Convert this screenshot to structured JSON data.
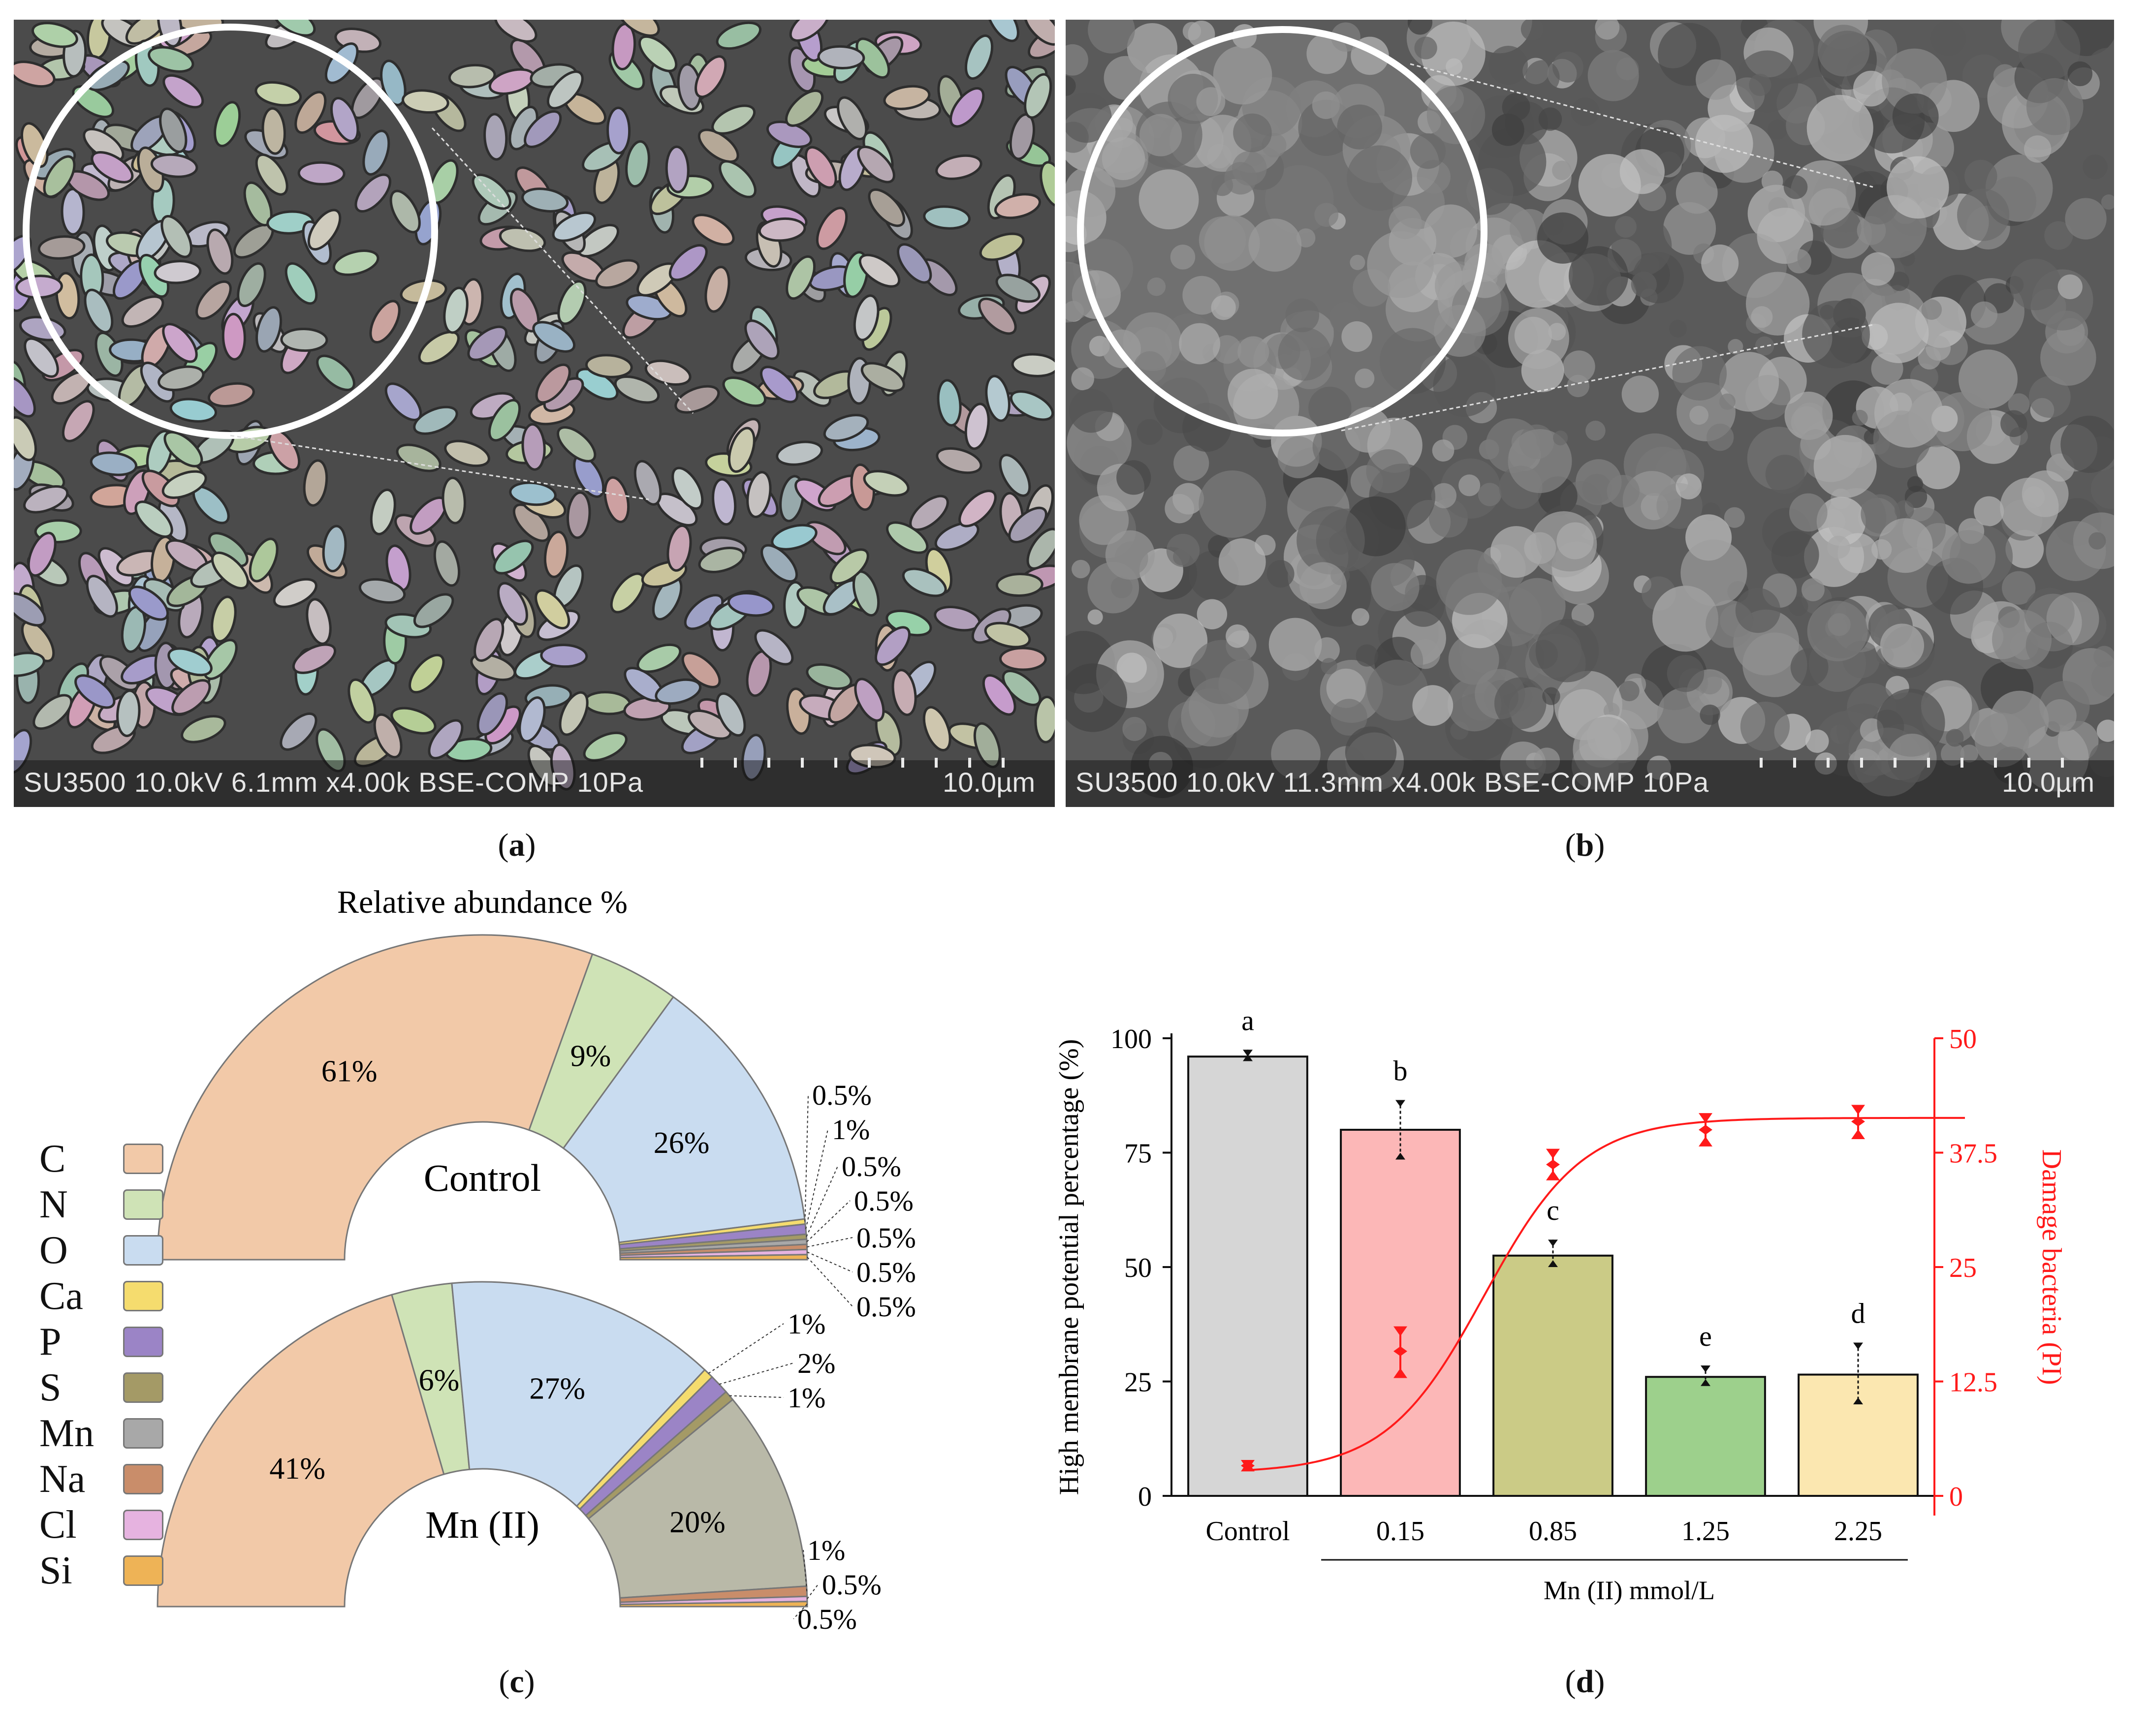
{
  "panel_a": {
    "info_text": "SU3500 10.0kV 6.1mm x4.00k BSE-COMP 10Pa",
    "scale_text": "10.0µm",
    "caption_letter": "a"
  },
  "panel_b": {
    "info_text": "SU3500 10.0kV 11.3mm x4.00k BSE-COMP 10Pa",
    "scale_text": "10.0µm",
    "caption_letter": "b"
  },
  "panel_c": {
    "caption_letter": "c",
    "title": "Relative abundance %",
    "legend": [
      {
        "label": "C",
        "color": "#f2c9a8"
      },
      {
        "label": "N",
        "color": "#cfe3b6"
      },
      {
        "label": "O",
        "color": "#c9dcf0"
      },
      {
        "label": "Ca",
        "color": "#f5dc6e"
      },
      {
        "label": "P",
        "color": "#9b84c6"
      },
      {
        "label": "S",
        "color": "#a49a66"
      },
      {
        "label": "Mn",
        "color": "#a8a8a8"
      },
      {
        "label": "Na",
        "color": "#c98d6a"
      },
      {
        "label": "Cl",
        "color": "#e6b3e0"
      },
      {
        "label": "Si",
        "color": "#eeb356"
      }
    ]
  },
  "panel_d": {
    "caption_letter": "d"
  },
  "chart_data": [
    {
      "type": "pie",
      "subtype": "half-donut",
      "title": "Relative abundance %",
      "center_label": "Control",
      "slices": [
        {
          "element": "C",
          "percent": 61,
          "label": "61%",
          "color": "#f2c9a8"
        },
        {
          "element": "N",
          "percent": 9,
          "label": "9%",
          "color": "#cfe3b6"
        },
        {
          "element": "O",
          "percent": 26,
          "label": "26%",
          "color": "#c9dcf0"
        },
        {
          "element": "Ca",
          "percent": 0.5,
          "label": "0.5%",
          "color": "#f5dc6e"
        },
        {
          "element": "P",
          "percent": 1,
          "label": "1%",
          "color": "#9b84c6"
        },
        {
          "element": "S",
          "percent": 0.5,
          "label": "0.5%",
          "color": "#a49a66"
        },
        {
          "element": "Mn",
          "percent": 0.5,
          "label": "0.5%",
          "color": "#a8a8a8"
        },
        {
          "element": "Na",
          "percent": 0.5,
          "label": "0.5%",
          "color": "#c98d6a"
        },
        {
          "element": "Cl",
          "percent": 0.5,
          "label": "0.5%",
          "color": "#e6b3e0"
        },
        {
          "element": "Si",
          "percent": 0.5,
          "label": "0.5%",
          "color": "#eeb356"
        }
      ]
    },
    {
      "type": "pie",
      "subtype": "half-donut",
      "center_label": "Mn (II)",
      "slices": [
        {
          "element": "C",
          "percent": 41,
          "label": "41%",
          "color": "#f2c9a8"
        },
        {
          "element": "N",
          "percent": 6,
          "label": "6%",
          "color": "#cfe3b6"
        },
        {
          "element": "O",
          "percent": 27,
          "label": "27%",
          "color": "#c9dcf0"
        },
        {
          "element": "Ca",
          "percent": 1,
          "label": "1%",
          "color": "#f5dc6e"
        },
        {
          "element": "P",
          "percent": 2,
          "label": "2%",
          "color": "#9b84c6"
        },
        {
          "element": "S",
          "percent": 1,
          "label": "1%",
          "color": "#a49a66"
        },
        {
          "element": "Mn",
          "percent": 20,
          "label": "20%",
          "color": "#b9b9a8"
        },
        {
          "element": "Na",
          "percent": 1,
          "label": "1%",
          "color": "#c98d6a"
        },
        {
          "element": "Cl",
          "percent": 0.5,
          "label": "0.5%",
          "color": "#e6b3e0"
        },
        {
          "element": "Si",
          "percent": 0.5,
          "label": "0.5%",
          "color": "#eeb356"
        }
      ]
    },
    {
      "type": "bar",
      "categories": [
        "Control",
        "0.15",
        "0.85",
        "1.25",
        "2.25"
      ],
      "xlabel": "Mn (II) mmol/L",
      "ylabel": "High membrane potential percentage (%)",
      "ylim": [
        0,
        100
      ],
      "yticks": [
        0,
        25,
        50,
        75,
        100
      ],
      "bars": {
        "values": [
          96,
          80,
          52.5,
          26,
          26.5
        ],
        "error_low": [
          95,
          73.5,
          50,
          24,
          20
        ],
        "error_high": [
          97.5,
          86.5,
          56,
          28.5,
          33.5
        ],
        "letters": [
          "a",
          "b",
          "c",
          "e",
          "d"
        ],
        "colors": [
          "#d6d6d6",
          "#fcb7b7",
          "#cbcb86",
          "#9dd08c",
          "#fbe7b0"
        ]
      },
      "y2label": "Damage bacteria (PI)",
      "y2lim": [
        0,
        50
      ],
      "y2ticks": [
        0,
        12.5,
        25,
        37.5,
        50
      ],
      "y2tick_labels": [
        "0",
        "12.5",
        "25",
        "37.5",
        "50"
      ],
      "pi_points": [
        {
          "category": "Control",
          "value": 3.3,
          "low": 3.0,
          "high": 3.6
        },
        {
          "category": "0.15",
          "value": 15.8,
          "low": 13.2,
          "high": 18.2
        },
        {
          "category": "0.85",
          "value": 36.2,
          "low": 34.8,
          "high": 37.6
        },
        {
          "category": "1.25",
          "value": 40.0,
          "low": 38.5,
          "high": 41.5
        },
        {
          "category": "2.25",
          "value": 40.9,
          "low": 39.3,
          "high": 42.4
        }
      ],
      "fit_line_color": "#ff1a1a"
    }
  ]
}
